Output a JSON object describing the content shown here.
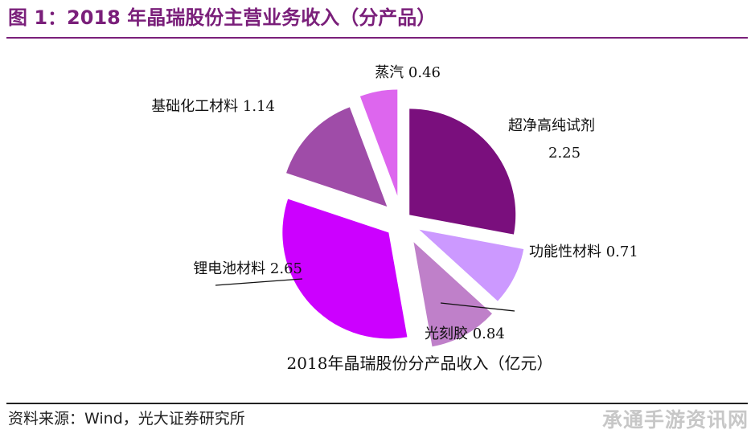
{
  "figure": {
    "title": "图 1：2018 年晶瑞股份主营业务收入（分产品）",
    "source": "资料来源：Wind，光大证券研究所"
  },
  "watermark": "承通手游资讯网",
  "chart_data": {
    "type": "pie",
    "xlabel": "2018年晶瑞股份分产品收入（亿元）",
    "slices": [
      {
        "label": "超净高纯试剂",
        "value": 2.25,
        "value_text": "2.25",
        "color": "#7a0f7d"
      },
      {
        "label": "功能性材料",
        "value": 0.71,
        "value_text": "0.71",
        "color": "#cc99ff"
      },
      {
        "label": "光刻胶",
        "value": 0.84,
        "value_text": "0.84",
        "color": "#bf80c9"
      },
      {
        "label": "锂电池材料",
        "value": 2.65,
        "value_text": "2.65",
        "color": "#cc00ff"
      },
      {
        "label": "基础化工材料",
        "value": 1.14,
        "value_text": "1.14",
        "color": "#9f4ca8"
      },
      {
        "label": "蒸汽",
        "value": 0.46,
        "value_text": "0.46",
        "color": "#dd66ee"
      }
    ]
  }
}
